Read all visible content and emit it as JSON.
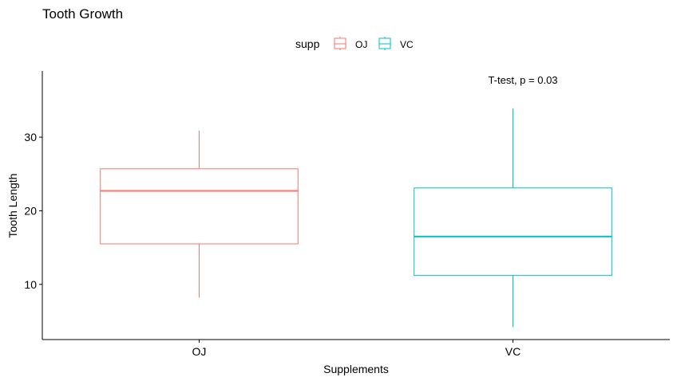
{
  "chart_data": {
    "type": "box",
    "title": "Tooth Growth",
    "xlabel": "Supplements",
    "ylabel": "Tooth Length",
    "legend": {
      "title": "supp",
      "position": "top"
    },
    "annotation": "T-test, p = 0.03",
    "categories": [
      "OJ",
      "VC"
    ],
    "ylim": [
      2.5,
      39
    ],
    "yticks": [
      10,
      20,
      30
    ],
    "grid": false,
    "boxes": [
      {
        "name": "OJ",
        "min": 8.2,
        "q1": 15.5,
        "median": 22.7,
        "q3": 25.7,
        "max": 30.9,
        "color": "#F8766D"
      },
      {
        "name": "VC",
        "min": 4.2,
        "q1": 11.2,
        "median": 16.5,
        "q3": 23.1,
        "max": 33.9,
        "color": "#00BFC4"
      }
    ]
  }
}
